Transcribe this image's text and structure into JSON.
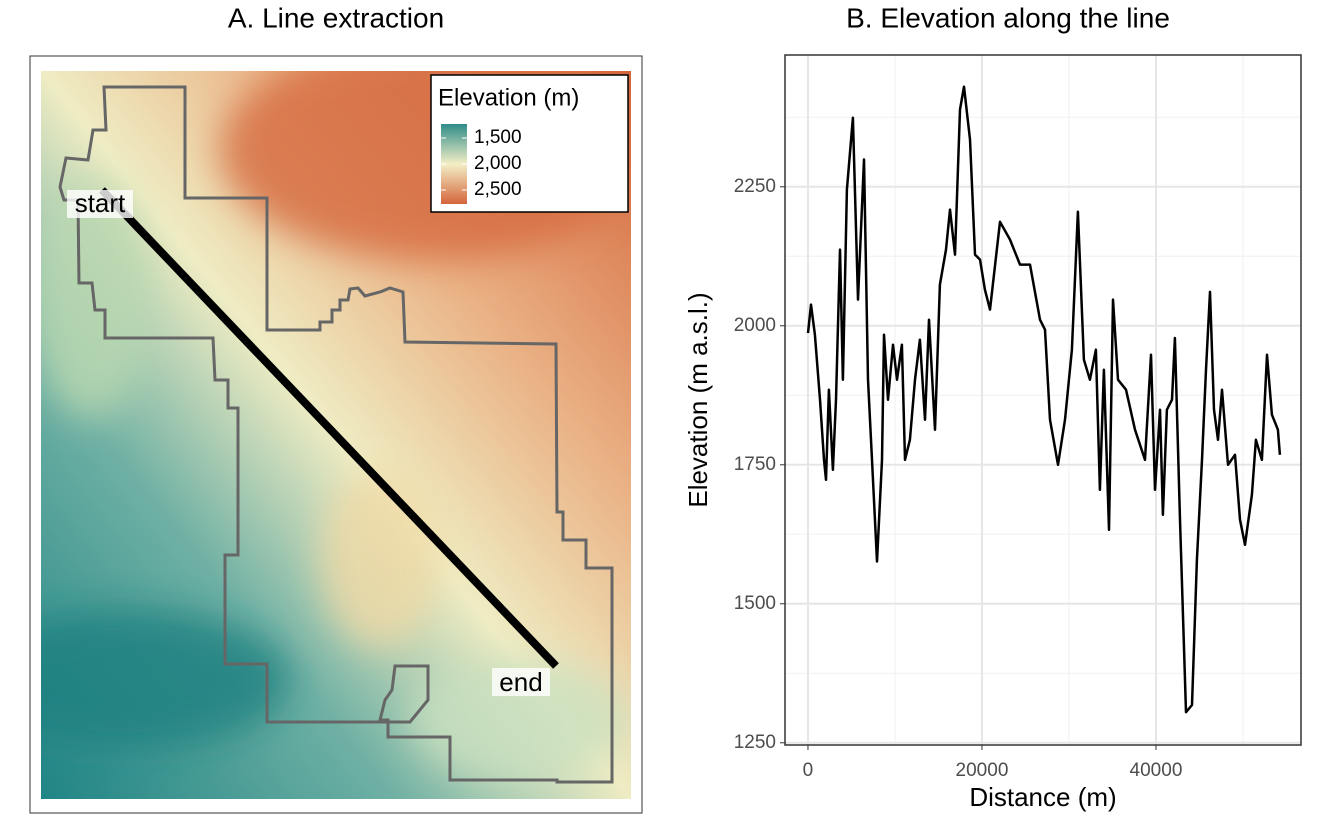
{
  "chart_data": [
    {
      "type": "map",
      "title": "A. Line extraction",
      "legend_title": "Elevation (m)",
      "legend_colors": [
        "#2f8c89",
        "#f3efc6",
        "#d5653c"
      ],
      "legend_lim": [
        1230,
        2770
      ],
      "legend_ticks": [
        {
          "value": 1500,
          "label": "1,500"
        },
        {
          "value": 2000,
          "label": "2,000"
        },
        {
          "value": 2500,
          "label": "2,500"
        }
      ],
      "labels": [
        "start",
        "end"
      ]
    },
    {
      "type": "line",
      "title": "B. Elevation along the line",
      "x_label": "Distance (m)",
      "y_label": "Elevation (m a.s.l.)",
      "xlim": [
        -2640,
        56670
      ],
      "ylim": [
        1246,
        2487
      ],
      "xticks": [
        0,
        20000,
        40000
      ],
      "yticks": [
        1250,
        1500,
        1750,
        2000,
        2250
      ],
      "x_minor_ticks": [
        10000,
        30000,
        50000
      ],
      "y_minor_ticks": [
        1375,
        1625,
        1875,
        2125,
        2375
      ],
      "grid": true,
      "color": "#000000",
      "x": [
        0,
        345,
        800,
        1380,
        1840,
        2070,
        2410,
        2870,
        3220,
        3680,
        4020,
        4480,
        5170,
        5750,
        6440,
        6900,
        7360,
        7930,
        8510,
        8740,
        9200,
        9770,
        10230,
        10800,
        11150,
        11720,
        12300,
        12870,
        13450,
        13910,
        14600,
        15170,
        15860,
        16320,
        16900,
        17470,
        17930,
        18620,
        19200,
        19770,
        20340,
        20920,
        22070,
        23220,
        24370,
        25520,
        26670,
        27240,
        27820,
        28740,
        29540,
        30340,
        31030,
        31720,
        32410,
        33100,
        33560,
        34020,
        34600,
        35060,
        35630,
        36550,
        37590,
        38740,
        39430,
        39890,
        40460,
        40800,
        41260,
        41840,
        42180,
        42760,
        43450,
        44140,
        44710,
        45290,
        45750,
        46210,
        46670,
        47130,
        47590,
        48280,
        49080,
        49660,
        50230,
        51030,
        51490,
        52180,
        52760,
        53330,
        54020,
        54250
      ],
      "values": [
        1987,
        2038,
        1984,
        1867,
        1759,
        1723,
        1885,
        1741,
        1867,
        2137,
        1903,
        2245,
        2374,
        2047,
        2299,
        1903,
        1759,
        1576,
        1759,
        1984,
        1867,
        1966,
        1903,
        1966,
        1759,
        1795,
        1903,
        1975,
        1831,
        2011,
        1813,
        2074,
        2137,
        2209,
        2128,
        2389,
        2430,
        2335,
        2128,
        2119,
        2065,
        2029,
        2187,
        2155,
        2110,
        2110,
        2011,
        1993,
        1831,
        1750,
        1831,
        1957,
        2205,
        1939,
        1903,
        1957,
        1705,
        1921,
        1633,
        2047,
        1903,
        1885,
        1813,
        1759,
        1948,
        1705,
        1849,
        1660,
        1849,
        1867,
        1978,
        1651,
        1305,
        1318,
        1579,
        1759,
        1921,
        2061,
        1849,
        1795,
        1885,
        1750,
        1768,
        1651,
        1606,
        1696,
        1795,
        1759,
        1948,
        1840,
        1813,
        1768
      ]
    }
  ]
}
